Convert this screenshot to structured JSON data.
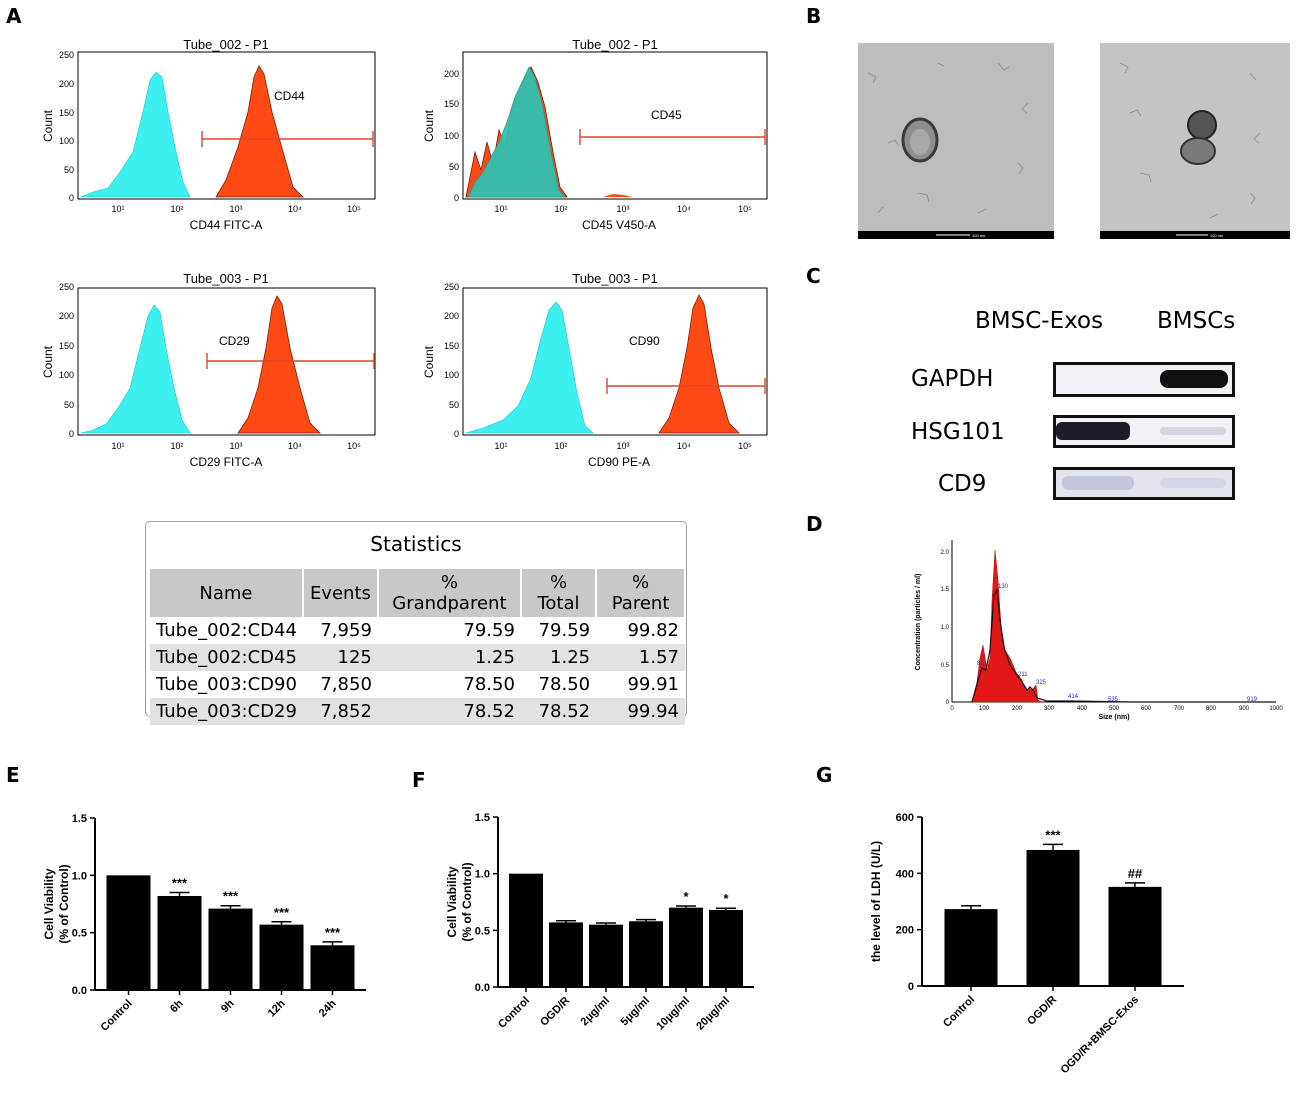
{
  "panels": {
    "a": "A",
    "b": "B",
    "c": "C",
    "d": "D",
    "e": "E",
    "f": "F",
    "g": "G"
  },
  "flow": [
    {
      "title": "Tube_002 - P1",
      "xlabel": "CD44 FITC-A",
      "ylabel": "Count",
      "gate": "CD44",
      "yticks": [
        "250",
        "200",
        "150",
        "100",
        "50",
        "0"
      ],
      "xticks": [
        "10¹",
        "10²",
        "10³",
        "10⁴",
        "10⁵"
      ]
    },
    {
      "title": "Tube_002 - P1",
      "xlabel": "CD45 V450-A",
      "ylabel": "Count",
      "gate": "CD45",
      "yticks": [
        "200",
        "150",
        "100",
        "50",
        "0"
      ],
      "xticks": [
        "10¹",
        "10²",
        "10³",
        "10⁴",
        "10⁵"
      ]
    },
    {
      "title": "Tube_003 - P1",
      "xlabel": "CD29 FITC-A",
      "ylabel": "Count",
      "gate": "CD29",
      "yticks": [
        "250",
        "200",
        "150",
        "100",
        "50",
        "0"
      ],
      "xticks": [
        "10¹",
        "10²",
        "10³",
        "10⁴",
        "10⁵"
      ]
    },
    {
      "title": "Tube_003 - P1",
      "xlabel": "CD90 PE-A",
      "ylabel": "Count",
      "gate": "CD90",
      "yticks": [
        "250",
        "200",
        "150",
        "100",
        "50",
        "0"
      ],
      "xticks": [
        "10¹",
        "10²",
        "10³",
        "10⁴",
        "10⁵"
      ]
    }
  ],
  "statistics": {
    "title": "Statistics",
    "headers": [
      "Name",
      "Events",
      "% Grandparent",
      "% Total",
      "% Parent"
    ],
    "rows": [
      [
        "Tube_002:CD44",
        "7,959",
        "79.59",
        "79.59",
        "99.82"
      ],
      [
        "Tube_002:CD45",
        "125",
        "1.25",
        "1.25",
        "1.57"
      ],
      [
        "Tube_003:CD90",
        "7,850",
        "78.50",
        "78.50",
        "99.91"
      ],
      [
        "Tube_003:CD29",
        "7,852",
        "78.52",
        "78.52",
        "99.94"
      ]
    ]
  },
  "tem": {
    "scale_label": "100 nm"
  },
  "western": {
    "columns": [
      "BMSC-Exos",
      "BMSCs"
    ],
    "rows": [
      "GAPDH",
      "HSG101",
      "CD9"
    ]
  },
  "nta": {
    "ylabel": "Concentration (particles / ml)",
    "xlabel": "Size (nm)",
    "yticks": [
      "2.0",
      "1.5",
      "1.0",
      "0.5",
      "0"
    ],
    "xticks": [
      "0",
      "100",
      "200",
      "300",
      "400",
      "500",
      "600",
      "700",
      "800",
      "900",
      "1000"
    ],
    "peak_labels": [
      "130",
      "82",
      "211",
      "325",
      "414",
      "535",
      "919"
    ]
  },
  "chart_data": [
    {
      "type": "bar",
      "panel": "E",
      "title": "",
      "ylabel": "Cell Viability (% of Control)",
      "xlabel": "",
      "categories": [
        "Control",
        "6h",
        "9h",
        "12h",
        "24h"
      ],
      "values": [
        1.0,
        0.82,
        0.71,
        0.57,
        0.39
      ],
      "errors": [
        0,
        0.03,
        0.025,
        0.025,
        0.03
      ],
      "annotations": [
        "",
        "***",
        "***",
        "***",
        "***"
      ],
      "yticks": [
        "0.0",
        "0.5",
        "1.0",
        "1.5"
      ],
      "ylim": [
        0,
        1.5
      ]
    },
    {
      "type": "bar",
      "panel": "F",
      "title": "",
      "ylabel": "Cell Viability (% of Control)",
      "xlabel": "",
      "categories": [
        "Control",
        "OGD/R",
        "2μg/ml",
        "5μg/ml",
        "10μg/ml",
        "20μg/ml"
      ],
      "values": [
        1.0,
        0.57,
        0.55,
        0.58,
        0.7,
        0.68
      ],
      "errors": [
        0,
        0.015,
        0.015,
        0.015,
        0.015,
        0.015
      ],
      "annotations": [
        "",
        "",
        "",
        "",
        "*",
        "*"
      ],
      "yticks": [
        "0.0",
        "0.5",
        "1.0",
        "1.5"
      ],
      "ylim": [
        0,
        1.5
      ]
    },
    {
      "type": "bar",
      "panel": "G",
      "title": "",
      "ylabel": "the level of LDH (U/L)",
      "xlabel": "",
      "categories": [
        "Control",
        "OGD/R",
        "OGD/R+BMSC-Exos"
      ],
      "values": [
        273,
        483,
        352
      ],
      "errors": [
        12,
        20,
        14
      ],
      "annotations": [
        "",
        "***",
        "##"
      ],
      "yticks": [
        "0",
        "200",
        "400",
        "600"
      ],
      "ylim": [
        0,
        600
      ]
    }
  ]
}
